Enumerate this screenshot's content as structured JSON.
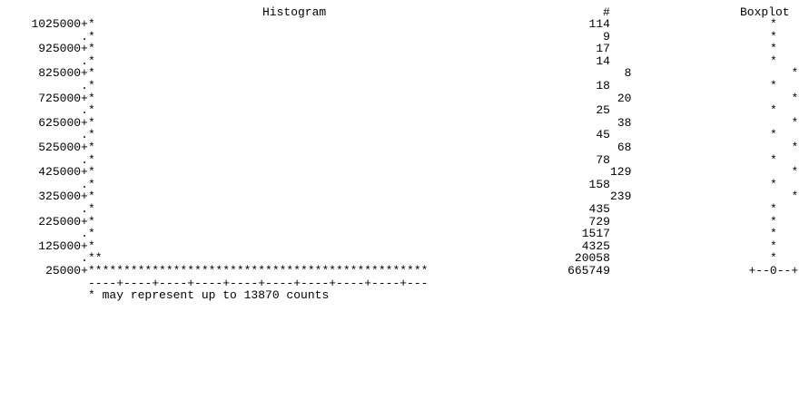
{
  "headers": {
    "histogram": "Histogram",
    "count": "#",
    "boxplot": "Boxplot"
  },
  "chart_data": {
    "type": "bar",
    "title": "Histogram",
    "orientation": "horizontal",
    "rows": [
      {
        "label": "1025000+",
        "bar": "*",
        "count": "114",
        "box": "*",
        "box_col": 0
      },
      {
        "label": ".",
        "bar": "*",
        "count": "9",
        "box": "*",
        "box_col": 0
      },
      {
        "label": "925000+",
        "bar": "*",
        "count": "17",
        "box": "*",
        "box_col": 0
      },
      {
        "label": ".",
        "bar": "*",
        "count": "14",
        "box": "*",
        "box_col": 0
      },
      {
        "label": "825000+",
        "bar": "*",
        "count": "8",
        "box": "*",
        "box_col": 1
      },
      {
        "label": ".",
        "bar": "*",
        "count": "18",
        "box": "*",
        "box_col": 0
      },
      {
        "label": "725000+",
        "bar": "*",
        "count": "20",
        "box": "*",
        "box_col": 1
      },
      {
        "label": ".",
        "bar": "*",
        "count": "25",
        "box": "*",
        "box_col": 0
      },
      {
        "label": "625000+",
        "bar": "*",
        "count": "38",
        "box": "*",
        "box_col": 1
      },
      {
        "label": ".",
        "bar": "*",
        "count": "45",
        "box": "*",
        "box_col": 0
      },
      {
        "label": "525000+",
        "bar": "*",
        "count": "68",
        "box": "*",
        "box_col": 1
      },
      {
        "label": ".",
        "bar": "*",
        "count": "78",
        "box": "*",
        "box_col": 0
      },
      {
        "label": "425000+",
        "bar": "*",
        "count": "129",
        "box": "*",
        "box_col": 1
      },
      {
        "label": ".",
        "bar": "*",
        "count": "158",
        "box": "*",
        "box_col": 0
      },
      {
        "label": "325000+",
        "bar": "*",
        "count": "239",
        "box": "*",
        "box_col": 1
      },
      {
        "label": ".",
        "bar": "*",
        "count": "435",
        "box": "*",
        "box_col": 0
      },
      {
        "label": "225000+",
        "bar": "*",
        "count": "729",
        "box": "*",
        "box_col": 0
      },
      {
        "label": ".",
        "bar": "*",
        "count": "1517",
        "box": "*",
        "box_col": 0
      },
      {
        "label": "125000+",
        "bar": "*",
        "count": "4325",
        "box": "*",
        "box_col": 0
      },
      {
        "label": ".",
        "bar": "**",
        "count": "20058",
        "box": "*",
        "box_col": 0
      },
      {
        "label": "25000+",
        "bar": "************************************************",
        "count": "665749",
        "box": "+--0--+",
        "box_col": 0
      }
    ],
    "axis_ticks": "----+----+----+----+----+----+----+----+----+---",
    "footnote": "* may represent up to 13870 counts",
    "star_scale": 13870
  }
}
